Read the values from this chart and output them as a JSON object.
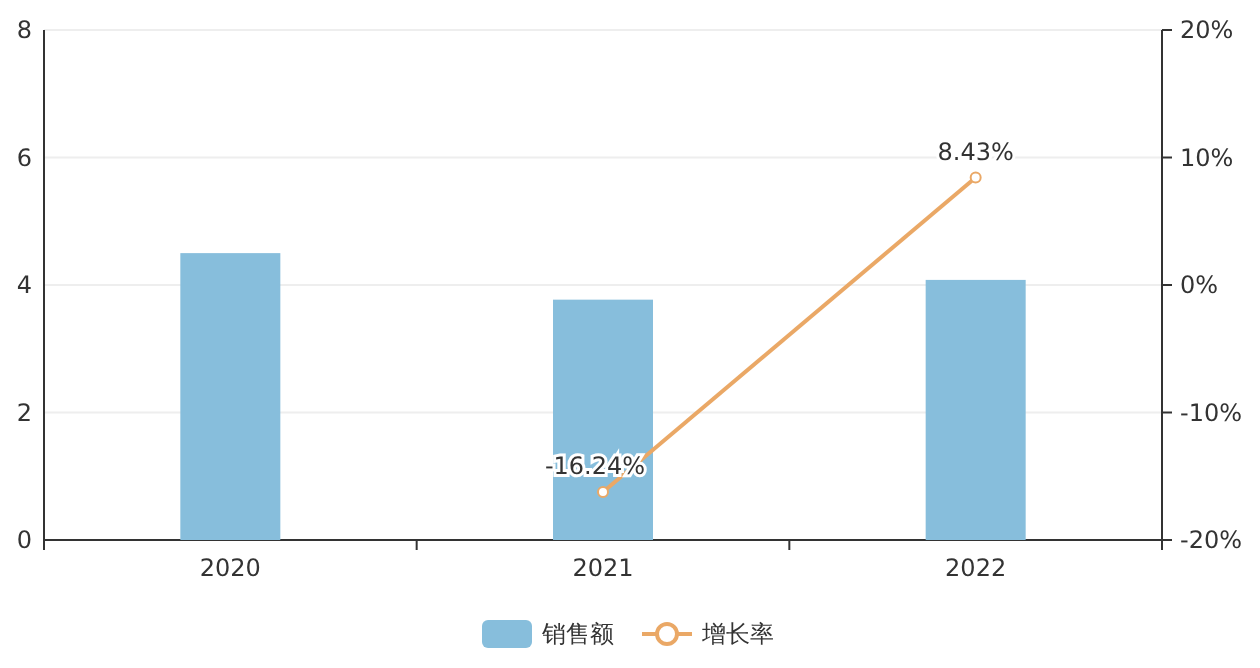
{
  "chart_data": {
    "type": "bar",
    "categories": [
      "2020",
      "2021",
      "2022"
    ],
    "series": [
      {
        "name": "销售额",
        "color": "#87bedc",
        "values": [
          4.5,
          3.77,
          4.08
        ]
      },
      {
        "name": "增长率",
        "type": "line",
        "axis": "y2",
        "color": "#eaa866",
        "marker": "circle",
        "values": [
          null,
          -16.24,
          8.43
        ],
        "value_labels": [
          null,
          "-16.24%",
          "8.43%"
        ]
      }
    ],
    "ylim": [
      0,
      8
    ],
    "yticks": [
      0,
      2,
      4,
      6,
      8
    ],
    "y2lim": [
      -20,
      20
    ],
    "y2ticks": [
      {
        "value": -20,
        "label": "-20%"
      },
      {
        "value": -10,
        "label": "-10%"
      },
      {
        "value": 0,
        "label": "0%"
      },
      {
        "value": 10,
        "label": "10%"
      },
      {
        "value": 20,
        "label": "20%"
      }
    ],
    "grid": "y",
    "legend": "bottom"
  }
}
